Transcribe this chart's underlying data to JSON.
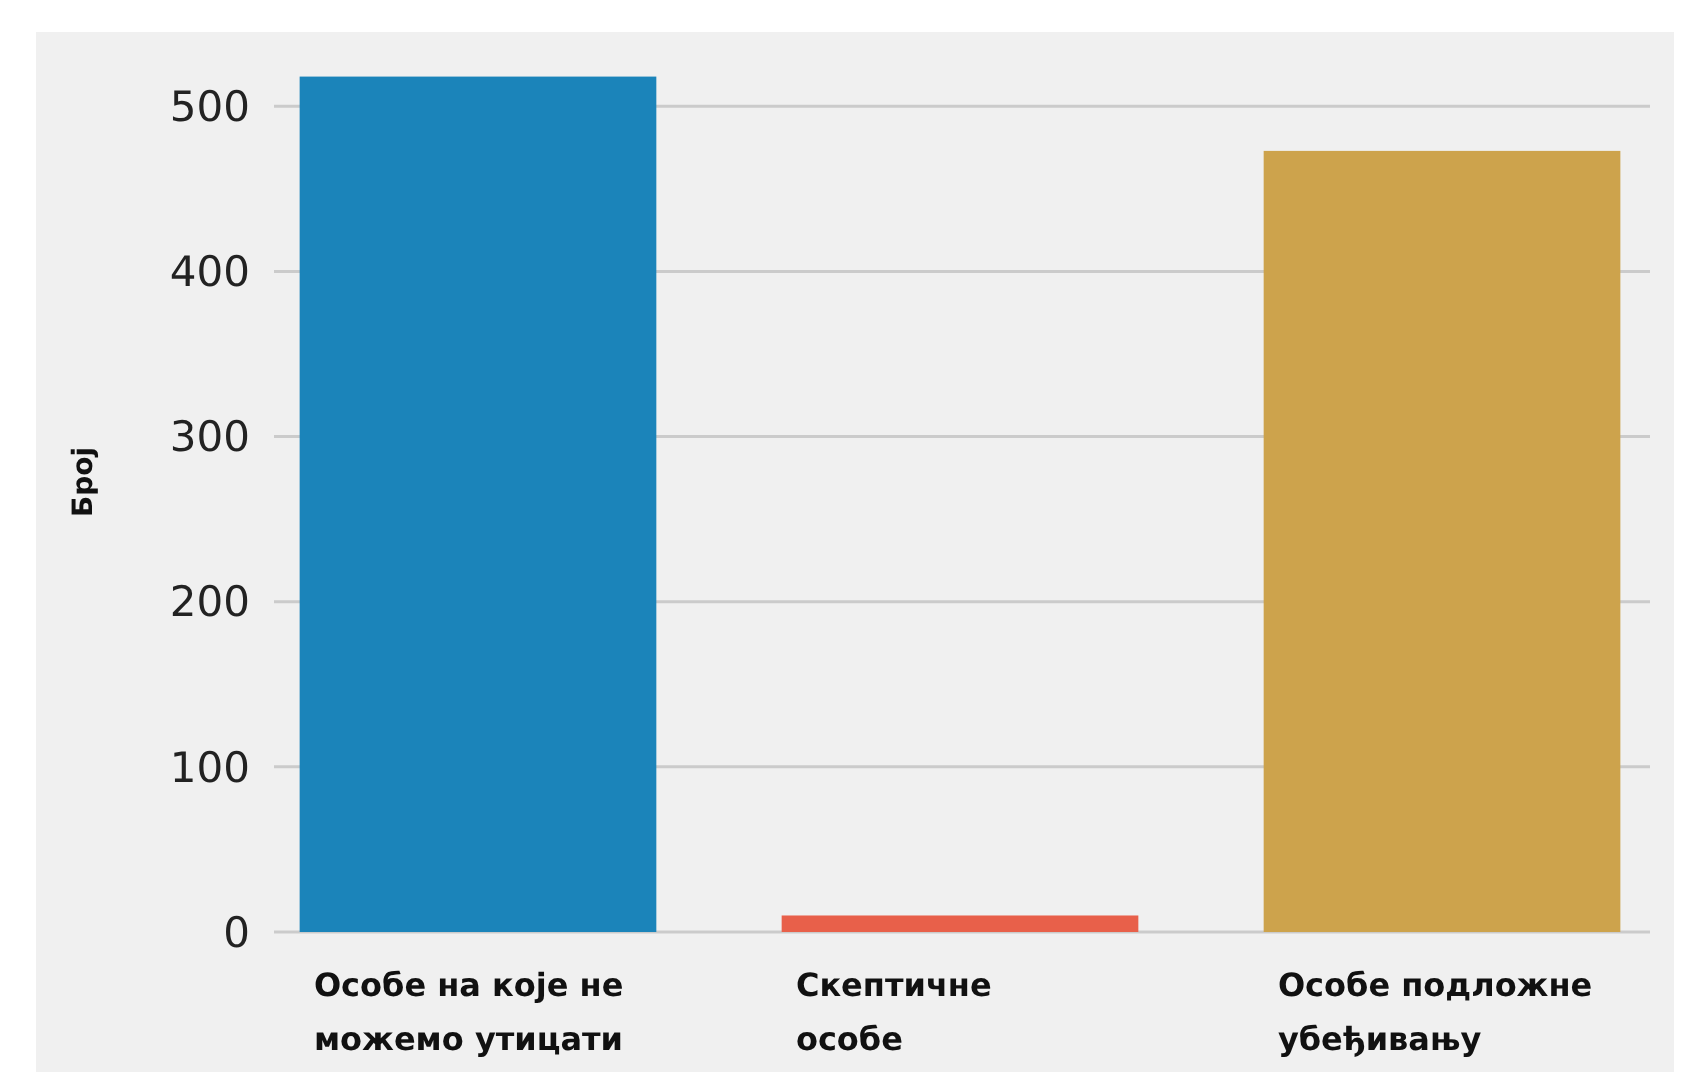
{
  "chart_data": {
    "type": "bar",
    "ylabel": "Број",
    "categories": [
      "Особе на које не можемо утицати",
      "Скептичне особе",
      "Особе подложне убеђивању"
    ],
    "values": [
      518,
      10,
      473
    ],
    "colors": [
      "#1b84ba",
      "#e8604a",
      "#cda34c"
    ],
    "ylim": [
      0,
      545
    ],
    "yticks": [
      0,
      100,
      200,
      300,
      400,
      500
    ],
    "grid": "y"
  }
}
